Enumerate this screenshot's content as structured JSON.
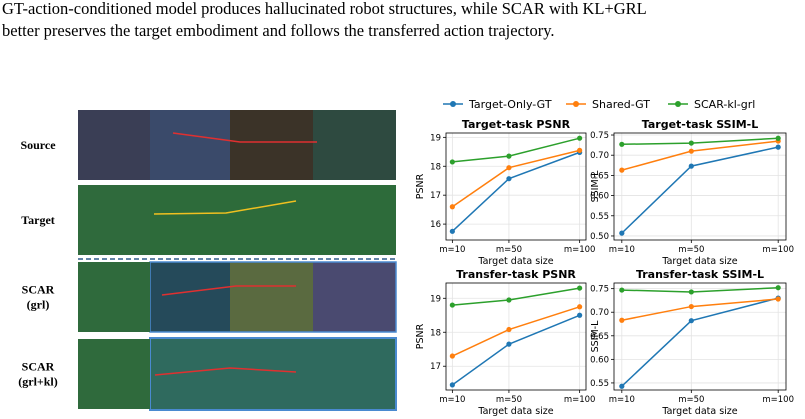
{
  "caption": [
    "GT-action-conditioned model produces hallucinated robot structures, while SCAR with KL+GRL",
    "better preserves the target embodiment and follows the transferred action trajectory."
  ],
  "row_labels": [
    [
      "Source"
    ],
    [
      "Target"
    ],
    [
      "SCAR",
      "(grl)"
    ],
    [
      "SCAR",
      "(grl+kl)"
    ]
  ],
  "chart_data": [
    {
      "type": "line",
      "title": "Target-task PSNR",
      "x_label": "Target data size",
      "y_label": "PSNR",
      "x": [
        10,
        50,
        100
      ],
      "xlim": [
        5.5,
        104.5
      ],
      "xticks": [
        {
          "value": 10,
          "label": "m=10"
        },
        {
          "value": 50,
          "label": "m=50"
        },
        {
          "value": 100,
          "label": "m=100"
        }
      ],
      "ylim": [
        15.45,
        19.15
      ],
      "yticks": [
        16,
        17,
        18,
        19
      ],
      "grid": true,
      "series": [
        {
          "name": "Target-Only-GT",
          "color": "#1f77b4",
          "values": [
            15.75,
            17.57,
            18.48
          ]
        },
        {
          "name": "Shared-GT",
          "color": "#ff7f0e",
          "values": [
            16.6,
            17.95,
            18.55
          ]
        },
        {
          "name": "SCAR-kl-grl",
          "color": "#2ca02c",
          "values": [
            18.15,
            18.35,
            18.97
          ]
        }
      ]
    },
    {
      "type": "line",
      "title": "Target-task SSIM-L",
      "x_label": "Target data size",
      "y_label": "SSIM-L",
      "x": [
        10,
        50,
        100
      ],
      "xlim": [
        5.5,
        104.5
      ],
      "xticks": [
        {
          "value": 10,
          "label": "m=10"
        },
        {
          "value": 50,
          "label": "m=50"
        },
        {
          "value": 100,
          "label": "m=100"
        }
      ],
      "ylim": [
        0.49,
        0.755
      ],
      "yticks": [
        {
          "value": 0.5,
          "label": "0.50"
        },
        {
          "value": 0.55,
          "label": "0.55"
        },
        {
          "value": 0.6,
          "label": "0.60"
        },
        {
          "value": 0.65,
          "label": "0.65"
        },
        {
          "value": 0.7,
          "label": "0.70"
        },
        {
          "value": 0.75,
          "label": "0.75"
        }
      ],
      "grid": true,
      "series": [
        {
          "name": "Target-Only-GT",
          "color": "#1f77b4",
          "values": [
            0.507,
            0.673,
            0.72
          ]
        },
        {
          "name": "Shared-GT",
          "color": "#ff7f0e",
          "values": [
            0.663,
            0.71,
            0.735
          ]
        },
        {
          "name": "SCAR-kl-grl",
          "color": "#2ca02c",
          "values": [
            0.727,
            0.73,
            0.742
          ]
        }
      ]
    },
    {
      "type": "line",
      "title": "Transfer-task PSNR",
      "x_label": "Target data size",
      "y_label": "PSNR",
      "x": [
        10,
        50,
        100
      ],
      "xlim": [
        5.5,
        104.5
      ],
      "xticks": [
        {
          "value": 10,
          "label": "m=10"
        },
        {
          "value": 50,
          "label": "m=50"
        },
        {
          "value": 100,
          "label": "m=100"
        }
      ],
      "ylim": [
        16.3,
        19.45
      ],
      "yticks": [
        17,
        18,
        19
      ],
      "grid": true,
      "series": [
        {
          "name": "Target-Only-GT",
          "color": "#1f77b4",
          "values": [
            16.45,
            17.65,
            18.5
          ]
        },
        {
          "name": "Shared-GT",
          "color": "#ff7f0e",
          "values": [
            17.3,
            18.08,
            18.75
          ]
        },
        {
          "name": "SCAR-kl-grl",
          "color": "#2ca02c",
          "values": [
            18.8,
            18.95,
            19.3
          ]
        }
      ]
    },
    {
      "type": "line",
      "title": "Transfer-task SSIM-L",
      "x_label": "Target data size",
      "y_label": "SSIM-L",
      "x": [
        10,
        50,
        100
      ],
      "xlim": [
        5.5,
        104.5
      ],
      "xticks": [
        {
          "value": 10,
          "label": "m=10"
        },
        {
          "value": 50,
          "label": "m=50"
        },
        {
          "value": 100,
          "label": "m=100"
        }
      ],
      "ylim": [
        0.535,
        0.762
      ],
      "yticks": [
        {
          "value": 0.55,
          "label": "0.55"
        },
        {
          "value": 0.6,
          "label": "0.60"
        },
        {
          "value": 0.65,
          "label": "0.65"
        },
        {
          "value": 0.7,
          "label": "0.70"
        },
        {
          "value": 0.75,
          "label": "0.75"
        }
      ],
      "grid": true,
      "series": [
        {
          "name": "Target-Only-GT",
          "color": "#1f77b4",
          "values": [
            0.543,
            0.682,
            0.73
          ]
        },
        {
          "name": "Shared-GT",
          "color": "#ff7f0e",
          "values": [
            0.683,
            0.712,
            0.728
          ]
        },
        {
          "name": "SCAR-kl-grl",
          "color": "#2ca02c",
          "values": [
            0.747,
            0.743,
            0.752
          ]
        }
      ]
    }
  ]
}
